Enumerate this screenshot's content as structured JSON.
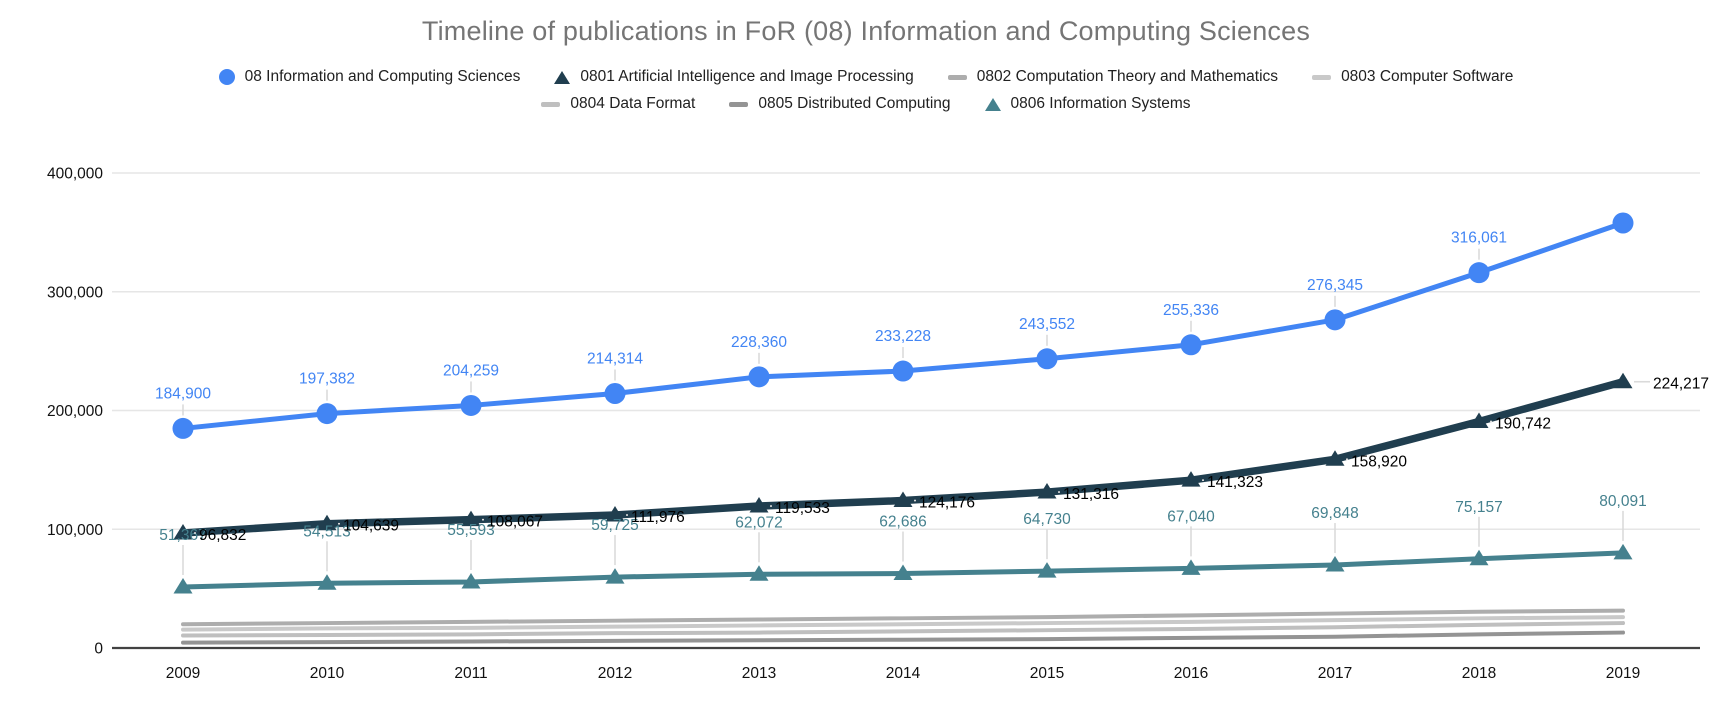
{
  "title": "Timeline of publications in FoR (08) Information and Computing Sciences",
  "colors": {
    "series_08": "#4285f4",
    "series_0801": "#203e4f",
    "series_0802": "#adadad",
    "series_0803": "#c9c9c9",
    "series_0804": "#bfbfbf",
    "series_0805": "#949494",
    "series_0806": "#45818e",
    "title_text": "#757575",
    "axis_text": "#111111",
    "gridline": "#e6e6e6",
    "axis_line": "#424242",
    "leader_line": "#dadada",
    "dark_label_text": "#000000"
  },
  "legend": {
    "rows": [
      [
        {
          "label": "08 Information and Computing Sciences",
          "marker": "circle",
          "color": "#4285f4"
        },
        {
          "label": "0801 Artificial Intelligence and Image Processing",
          "marker": "triangle",
          "color": "#203e4f"
        },
        {
          "label": "0802 Computation Theory and Mathematics",
          "marker": "dash",
          "color": "#adadad"
        },
        {
          "label": "0803 Computer Software",
          "marker": "dash",
          "color": "#c9c9c9"
        }
      ],
      [
        {
          "label": "0804 Data Format",
          "marker": "dash",
          "color": "#bfbfbf"
        },
        {
          "label": "0805 Distributed Computing",
          "marker": "dash",
          "color": "#949494"
        },
        {
          "label": "0806 Information Systems",
          "marker": "triangle",
          "color": "#45818e"
        }
      ]
    ]
  },
  "axes": {
    "y_ticks": [
      {
        "label": "400,000",
        "value": 400000
      },
      {
        "label": "300,000",
        "value": 300000
      },
      {
        "label": "200,000",
        "value": 200000
      },
      {
        "label": "100,000",
        "value": 100000
      },
      {
        "label": "0",
        "value": 0
      }
    ],
    "x_ticks": [
      "2009",
      "2010",
      "2011",
      "2012",
      "2013",
      "2014",
      "2015",
      "2016",
      "2017",
      "2018",
      "2019"
    ]
  },
  "chart_data": {
    "type": "line",
    "x": [
      2009,
      2010,
      2011,
      2012,
      2013,
      2014,
      2015,
      2016,
      2017,
      2018,
      2019
    ],
    "ylim": [
      0,
      400000
    ],
    "grid": true,
    "legend_position": "top",
    "title": "Timeline of publications in FoR (08) Information and Computing Sciences",
    "xlabel": "",
    "ylabel": "",
    "series": [
      {
        "name": "08 Information and Computing Sciences",
        "marker": "circle",
        "color": "#4285f4",
        "label_color": "#4285f4",
        "label_pos": "above",
        "values": [
          184900,
          197382,
          204259,
          214314,
          228360,
          233228,
          243552,
          255336,
          276345,
          316061,
          357900
        ],
        "labels": [
          "184,900",
          "197,382",
          "204,259",
          "214,314",
          "228,360",
          "233,228",
          "243,552",
          "255,336",
          "276,345",
          "316,061",
          null
        ]
      },
      {
        "name": "0801 Artificial Intelligence and Image Processing",
        "marker": "triangle",
        "color": "#203e4f",
        "label_color": "#000000",
        "label_pos": "right",
        "values": [
          96832,
          104639,
          108067,
          111976,
          119533,
          124176,
          131316,
          141323,
          158920,
          190742,
          224217
        ],
        "labels": [
          "96,832",
          "104,639",
          "108,067",
          "111,976",
          "119,533",
          "124,176",
          "131,316",
          "141,323",
          "158,920",
          "190,742",
          "224,217"
        ]
      },
      {
        "name": "0802 Computation Theory and Mathematics",
        "marker": "none",
        "color": "#adadad",
        "label_pos": "none",
        "values": [
          20000,
          21000,
          22000,
          23000,
          24000,
          25000,
          26000,
          27500,
          29000,
          30500,
          31500
        ],
        "labels": null
      },
      {
        "name": "0803 Computer Software",
        "marker": "none",
        "color": "#c9c9c9",
        "label_pos": "none",
        "values": [
          15500,
          16500,
          17000,
          18000,
          19000,
          20000,
          21000,
          22000,
          23500,
          25000,
          26000
        ],
        "labels": null
      },
      {
        "name": "0804 Data Format",
        "marker": "none",
        "color": "#bfbfbf",
        "label_pos": "none",
        "values": [
          10500,
          11000,
          11500,
          12500,
          13000,
          14000,
          15000,
          16000,
          17500,
          19500,
          21000
        ],
        "labels": null
      },
      {
        "name": "0805 Distributed Computing",
        "marker": "none",
        "color": "#949494",
        "label_pos": "none",
        "values": [
          4500,
          5000,
          5500,
          6000,
          6500,
          7000,
          7500,
          8500,
          9500,
          11500,
          13000
        ],
        "labels": null
      },
      {
        "name": "0806 Information Systems",
        "marker": "triangle",
        "color": "#45818e",
        "label_color": "#45818e",
        "label_pos": "above_far",
        "values": [
          51367,
          54513,
          55593,
          59725,
          62072,
          62686,
          64730,
          67040,
          69848,
          75157,
          80091
        ],
        "labels": [
          "51,367",
          "54,513",
          "55,593",
          "59,725",
          "62,072",
          "62,686",
          "64,730",
          "67,040",
          "69,848",
          "75,157",
          "80,091"
        ]
      }
    ]
  }
}
